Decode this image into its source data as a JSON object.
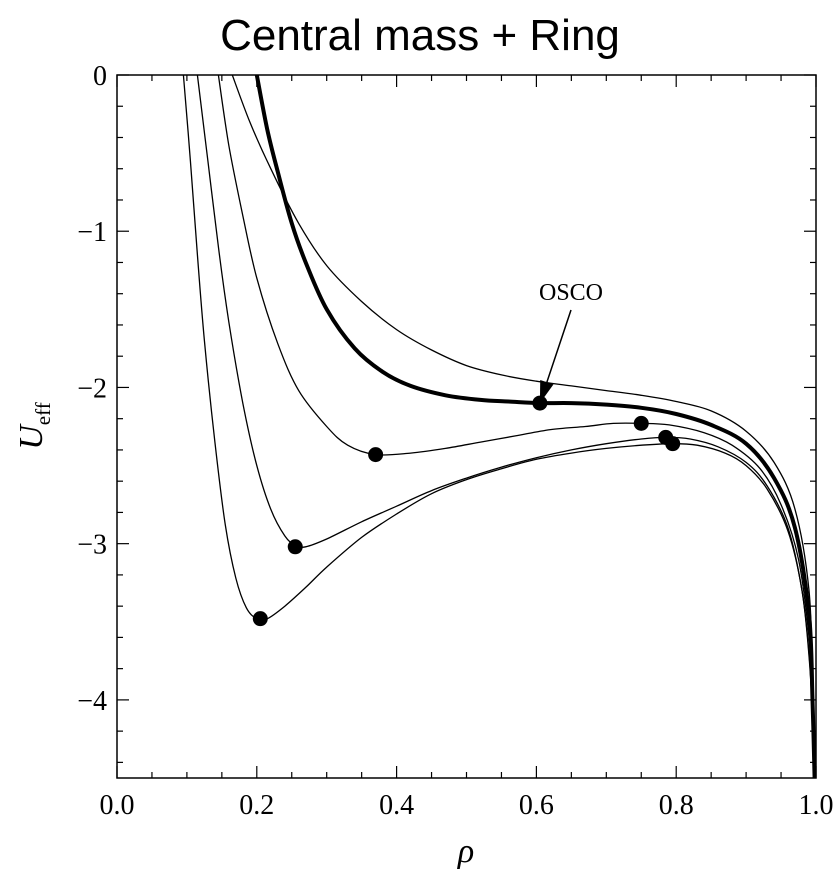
{
  "chart_data": {
    "type": "line",
    "title": "Central mass + Ring",
    "xlabel": "ρ",
    "ylabel": {
      "main": "U",
      "subscript": "eff"
    },
    "xlim": [
      0.0,
      1.0
    ],
    "ylim": [
      -4.5,
      0
    ],
    "x_ticks": [
      "0.0",
      "0.2",
      "0.4",
      "0.6",
      "0.8",
      "1.0"
    ],
    "y_ticks": [
      "0",
      "−1",
      "−2",
      "−3",
      "−4"
    ],
    "grid": false,
    "series": [
      {
        "thick": false,
        "points": [
          [
            0.165,
            0
          ],
          [
            0.19,
            -0.3
          ],
          [
            0.22,
            -0.6
          ],
          [
            0.26,
            -0.95
          ],
          [
            0.3,
            -1.22
          ],
          [
            0.35,
            -1.45
          ],
          [
            0.4,
            -1.63
          ],
          [
            0.45,
            -1.76
          ],
          [
            0.5,
            -1.86
          ],
          [
            0.55,
            -1.92
          ],
          [
            0.6,
            -1.96
          ],
          [
            0.65,
            -1.99
          ],
          [
            0.7,
            -2.02
          ],
          [
            0.75,
            -2.05
          ],
          [
            0.8,
            -2.09
          ],
          [
            0.85,
            -2.15
          ],
          [
            0.9,
            -2.28
          ],
          [
            0.94,
            -2.48
          ],
          [
            0.97,
            -2.78
          ],
          [
            0.99,
            -3.3
          ],
          [
            0.995,
            -3.9
          ],
          [
            0.998,
            -4.5
          ]
        ]
      },
      {
        "thick": true,
        "points": [
          [
            0.2,
            0
          ],
          [
            0.215,
            -0.35
          ],
          [
            0.23,
            -0.62
          ],
          [
            0.25,
            -0.95
          ],
          [
            0.27,
            -1.2
          ],
          [
            0.3,
            -1.5
          ],
          [
            0.34,
            -1.75
          ],
          [
            0.38,
            -1.9
          ],
          [
            0.42,
            -1.99
          ],
          [
            0.47,
            -2.05
          ],
          [
            0.52,
            -2.08
          ],
          [
            0.56,
            -2.09
          ],
          [
            0.605,
            -2.1
          ],
          [
            0.65,
            -2.1
          ],
          [
            0.7,
            -2.11
          ],
          [
            0.75,
            -2.13
          ],
          [
            0.8,
            -2.17
          ],
          [
            0.85,
            -2.24
          ],
          [
            0.9,
            -2.36
          ],
          [
            0.94,
            -2.58
          ],
          [
            0.97,
            -2.9
          ],
          [
            0.99,
            -3.45
          ],
          [
            0.995,
            -4.0
          ],
          [
            0.998,
            -4.5
          ]
        ]
      },
      {
        "thick": false,
        "points": [
          [
            0.145,
            0
          ],
          [
            0.16,
            -0.45
          ],
          [
            0.18,
            -0.9
          ],
          [
            0.2,
            -1.3
          ],
          [
            0.23,
            -1.72
          ],
          [
            0.26,
            -2.02
          ],
          [
            0.3,
            -2.25
          ],
          [
            0.33,
            -2.37
          ],
          [
            0.37,
            -2.43
          ],
          [
            0.42,
            -2.42
          ],
          [
            0.47,
            -2.39
          ],
          [
            0.52,
            -2.35
          ],
          [
            0.57,
            -2.31
          ],
          [
            0.62,
            -2.27
          ],
          [
            0.67,
            -2.25
          ],
          [
            0.71,
            -2.23
          ],
          [
            0.75,
            -2.23
          ],
          [
            0.79,
            -2.24
          ],
          [
            0.84,
            -2.29
          ],
          [
            0.88,
            -2.37
          ],
          [
            0.92,
            -2.52
          ],
          [
            0.95,
            -2.75
          ],
          [
            0.975,
            -3.1
          ],
          [
            0.99,
            -3.6
          ],
          [
            0.995,
            -4.0
          ],
          [
            0.998,
            -4.5
          ]
        ]
      },
      {
        "thick": false,
        "points": [
          [
            0.115,
            0
          ],
          [
            0.13,
            -0.55
          ],
          [
            0.145,
            -1.1
          ],
          [
            0.16,
            -1.58
          ],
          [
            0.18,
            -2.1
          ],
          [
            0.2,
            -2.5
          ],
          [
            0.22,
            -2.78
          ],
          [
            0.24,
            -2.95
          ],
          [
            0.255,
            -3.01
          ],
          [
            0.27,
            -3.02
          ],
          [
            0.3,
            -2.97
          ],
          [
            0.35,
            -2.86
          ],
          [
            0.4,
            -2.76
          ],
          [
            0.45,
            -2.66
          ],
          [
            0.5,
            -2.58
          ],
          [
            0.55,
            -2.51
          ],
          [
            0.6,
            -2.45
          ],
          [
            0.65,
            -2.4
          ],
          [
            0.7,
            -2.36
          ],
          [
            0.75,
            -2.33
          ],
          [
            0.785,
            -2.32
          ],
          [
            0.82,
            -2.33
          ],
          [
            0.86,
            -2.38
          ],
          [
            0.9,
            -2.48
          ],
          [
            0.93,
            -2.63
          ],
          [
            0.96,
            -2.9
          ],
          [
            0.98,
            -3.3
          ],
          [
            0.99,
            -3.7
          ],
          [
            0.995,
            -4.1
          ],
          [
            0.998,
            -4.5
          ]
        ]
      },
      {
        "thick": false,
        "points": [
          [
            0.095,
            0
          ],
          [
            0.105,
            -0.55
          ],
          [
            0.115,
            -1.15
          ],
          [
            0.125,
            -1.7
          ],
          [
            0.14,
            -2.35
          ],
          [
            0.155,
            -2.88
          ],
          [
            0.17,
            -3.22
          ],
          [
            0.185,
            -3.41
          ],
          [
            0.2,
            -3.48
          ],
          [
            0.215,
            -3.48
          ],
          [
            0.24,
            -3.4
          ],
          [
            0.27,
            -3.28
          ],
          [
            0.3,
            -3.15
          ],
          [
            0.35,
            -2.96
          ],
          [
            0.4,
            -2.81
          ],
          [
            0.45,
            -2.68
          ],
          [
            0.5,
            -2.59
          ],
          [
            0.55,
            -2.52
          ],
          [
            0.6,
            -2.46
          ],
          [
            0.65,
            -2.42
          ],
          [
            0.7,
            -2.39
          ],
          [
            0.75,
            -2.37
          ],
          [
            0.795,
            -2.36
          ],
          [
            0.83,
            -2.37
          ],
          [
            0.87,
            -2.42
          ],
          [
            0.9,
            -2.5
          ],
          [
            0.93,
            -2.65
          ],
          [
            0.96,
            -2.92
          ],
          [
            0.98,
            -3.3
          ],
          [
            0.99,
            -3.72
          ],
          [
            0.995,
            -4.1
          ],
          [
            0.998,
            -4.5
          ]
        ]
      }
    ],
    "markers": [
      [
        0.605,
        -2.1
      ],
      [
        0.37,
        -2.43
      ],
      [
        0.75,
        -2.23
      ],
      [
        0.255,
        -3.02
      ],
      [
        0.785,
        -2.32
      ],
      [
        0.205,
        -3.48
      ],
      [
        0.795,
        -2.36
      ]
    ],
    "annotation": {
      "text": "OSCO",
      "points_to": [
        0.605,
        -2.1
      ]
    },
    "colors": {
      "line": "#000000",
      "marker": "#000000",
      "background": "#ffffff"
    }
  }
}
